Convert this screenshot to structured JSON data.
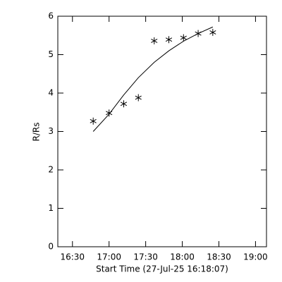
{
  "chart_data": {
    "type": "scatter",
    "xlabel": "Start Time (27-Jul-25 16:18:07)",
    "ylabel": "R/Rs",
    "xlim": [
      978,
      1149
    ],
    "ylim": [
      0,
      6
    ],
    "xticks": [
      {
        "value": 990,
        "label": "16:30"
      },
      {
        "value": 1020,
        "label": "17:00"
      },
      {
        "value": 1050,
        "label": "17:30"
      },
      {
        "value": 1080,
        "label": "18:00"
      },
      {
        "value": 1110,
        "label": "18:30"
      },
      {
        "value": 1140,
        "label": "19:00"
      }
    ],
    "yticks": [
      0,
      1,
      2,
      3,
      4,
      5,
      6
    ],
    "series": [
      {
        "type": "scatter",
        "marker": "asterisk",
        "color": "#000000",
        "x": [
          1007,
          1020,
          1032,
          1044,
          1057,
          1069,
          1081,
          1093,
          1105
        ],
        "values": [
          3.27,
          3.48,
          3.72,
          3.88,
          5.36,
          5.39,
          5.44,
          5.55,
          5.58
        ]
      },
      {
        "type": "line",
        "color": "#000000",
        "x": [
          1007,
          1020,
          1032,
          1044,
          1057,
          1069,
          1081,
          1093,
          1105
        ],
        "values": [
          3.0,
          3.45,
          3.95,
          4.4,
          4.8,
          5.1,
          5.35,
          5.55,
          5.72
        ]
      }
    ]
  }
}
